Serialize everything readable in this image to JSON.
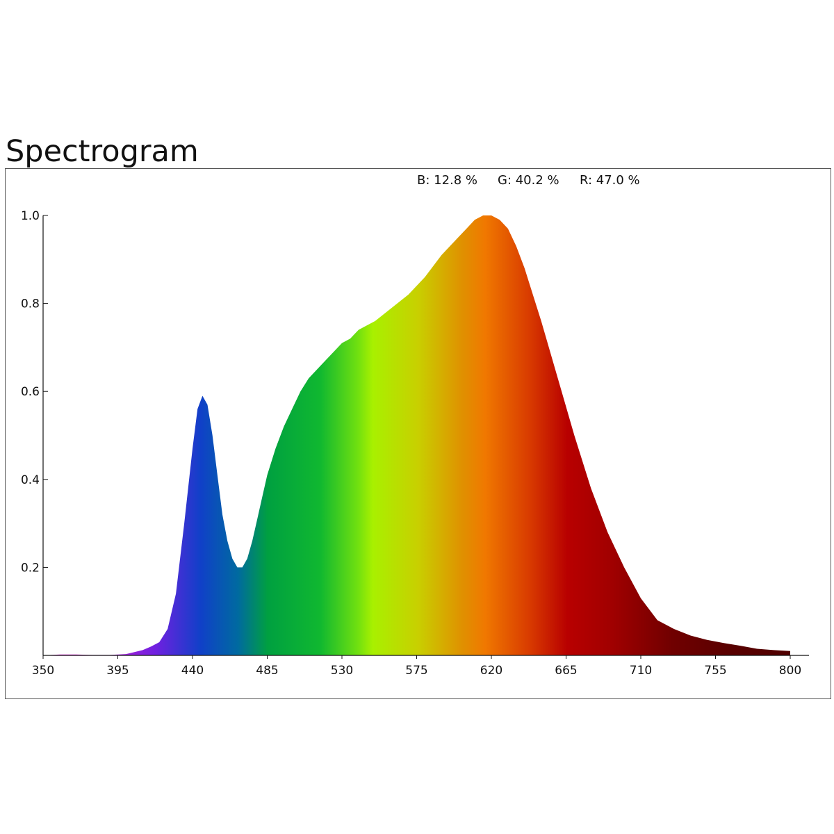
{
  "title": "Spectrogram",
  "summary": {
    "b_text": "B: 12.8 %",
    "g_text": "G: 40.2 %",
    "r_text": "R: 47.0 %"
  },
  "chart_data": {
    "type": "area",
    "title": "Spectrogram",
    "xlabel": "",
    "ylabel": "",
    "xlim": [
      350,
      800
    ],
    "ylim": [
      0,
      1.0
    ],
    "x_ticks": [
      "350",
      "395",
      "440",
      "485",
      "530",
      "575",
      "620",
      "665",
      "710",
      "755",
      "800"
    ],
    "y_ticks": [
      "0.2",
      "0.4",
      "0.6",
      "0.8",
      "1.0"
    ],
    "grid": false,
    "fill": "wavelength-color gradient",
    "series": [
      {
        "x": [
          350,
          360,
          370,
          380,
          390,
          400,
          410,
          415,
          420,
          425,
          430,
          435,
          440,
          443,
          446,
          449,
          452,
          455,
          458,
          461,
          464,
          467,
          470,
          473,
          476,
          479,
          482,
          485,
          490,
          495,
          500,
          505,
          510,
          515,
          520,
          525,
          530,
          535,
          540,
          545,
          550,
          560,
          570,
          580,
          590,
          600,
          605,
          610,
          615,
          620,
          625,
          630,
          635,
          640,
          645,
          650,
          660,
          670,
          680,
          690,
          700,
          710,
          720,
          730,
          740,
          750,
          760,
          770,
          780,
          790,
          800
        ],
        "y": [
          0.0,
          0.002,
          0.002,
          0.001,
          0.001,
          0.003,
          0.012,
          0.02,
          0.03,
          0.06,
          0.14,
          0.3,
          0.47,
          0.56,
          0.59,
          0.57,
          0.5,
          0.41,
          0.32,
          0.26,
          0.22,
          0.2,
          0.2,
          0.22,
          0.26,
          0.31,
          0.36,
          0.41,
          0.47,
          0.52,
          0.56,
          0.6,
          0.63,
          0.65,
          0.67,
          0.69,
          0.71,
          0.72,
          0.74,
          0.75,
          0.76,
          0.79,
          0.82,
          0.86,
          0.91,
          0.95,
          0.97,
          0.99,
          1.0,
          1.0,
          0.99,
          0.97,
          0.93,
          0.88,
          0.82,
          0.76,
          0.63,
          0.5,
          0.38,
          0.28,
          0.2,
          0.13,
          0.08,
          0.06,
          0.045,
          0.035,
          0.028,
          0.022,
          0.015,
          0.012,
          0.01
        ]
      }
    ]
  }
}
